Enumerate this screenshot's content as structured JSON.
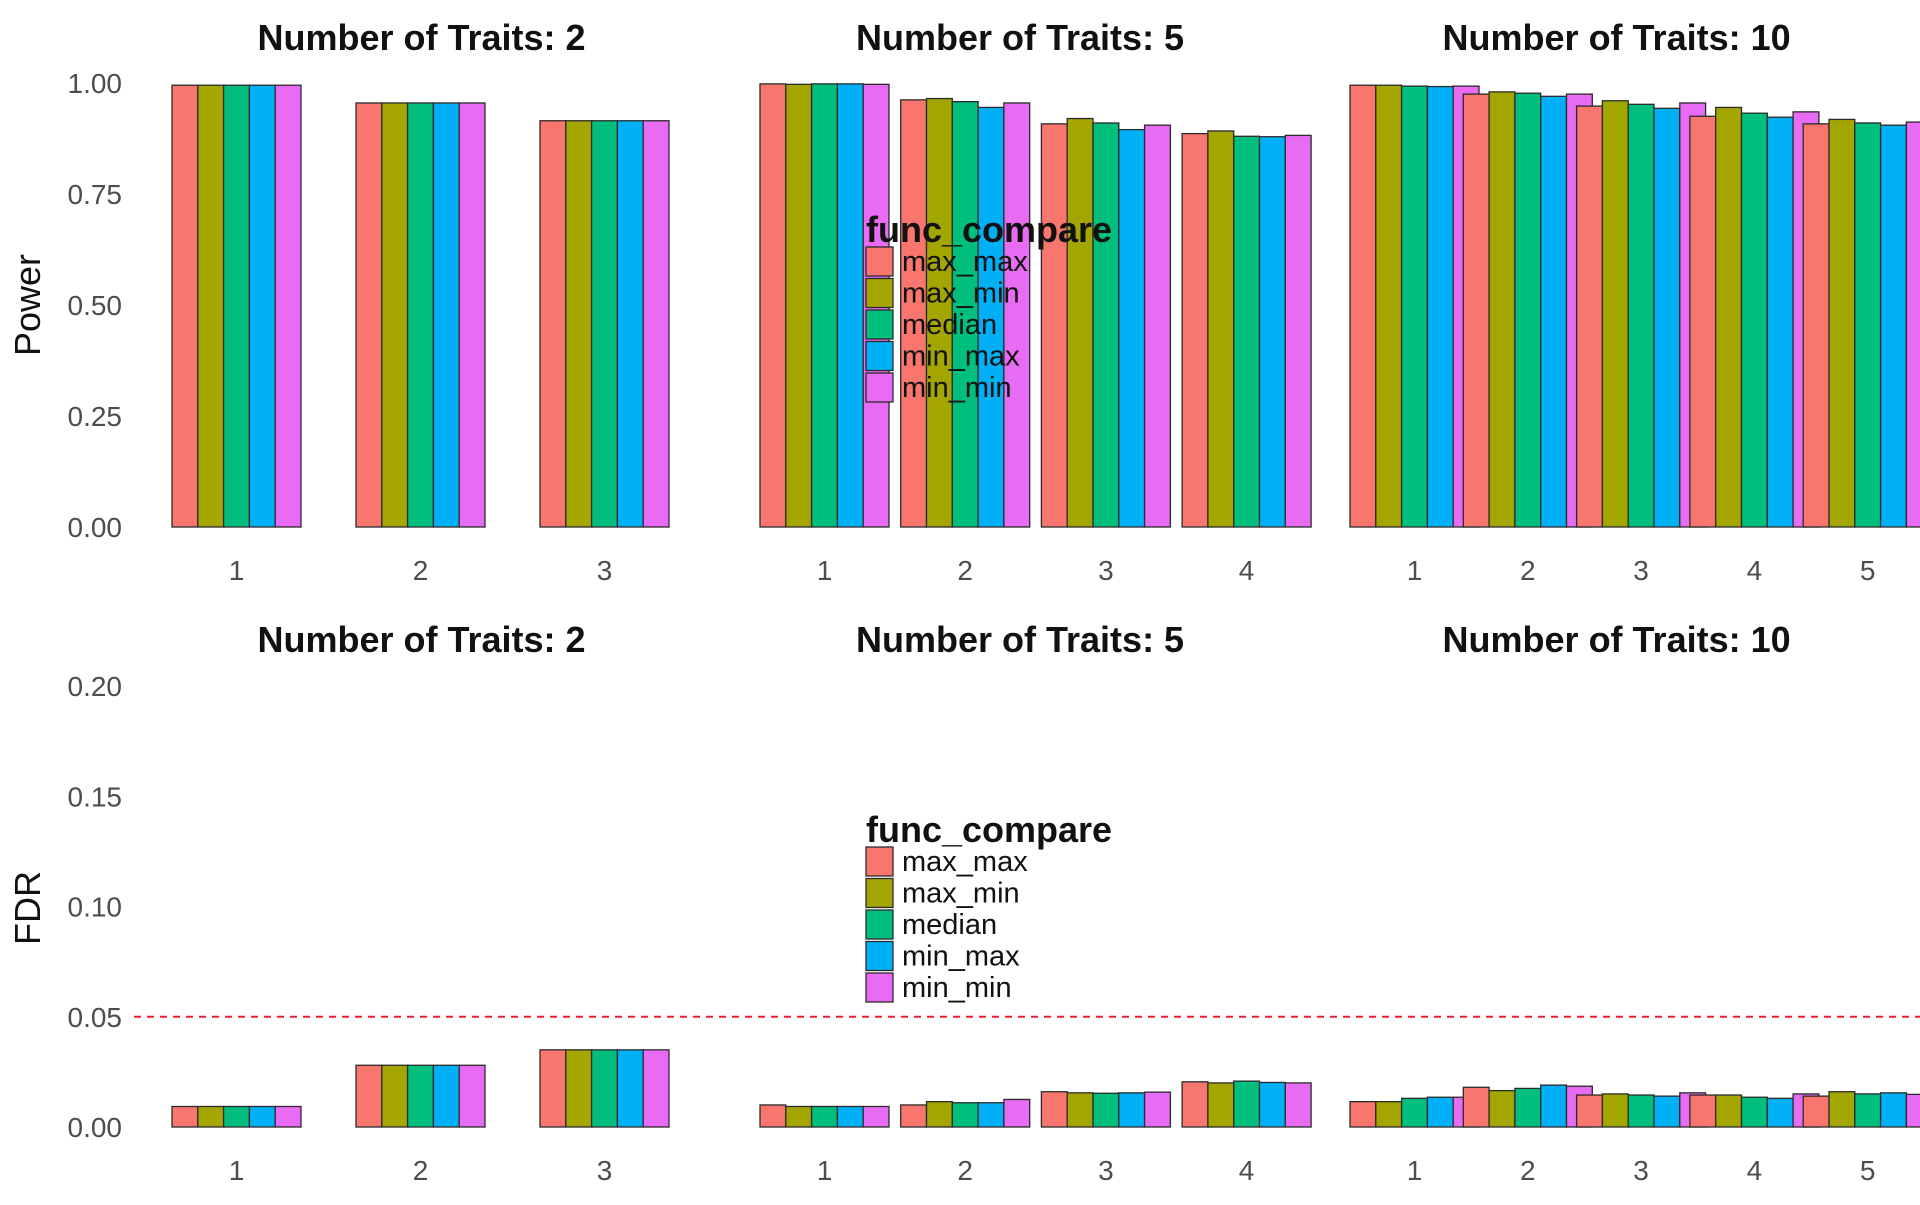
{
  "chart_data": [
    {
      "type": "bar",
      "ylabel": "Power",
      "ylim": [
        0,
        1
      ],
      "yticks": [
        "0.00",
        "0.25",
        "0.50",
        "0.75",
        "1.00"
      ],
      "legend": {
        "title": "func_compare",
        "placement": "center",
        "entries": [
          "max_max",
          "max_min",
          "median",
          "min_max",
          "min_min"
        ]
      },
      "series_colors": [
        "#F8766D",
        "#A3A500",
        "#00BF7D",
        "#00B0F6",
        "#E76BF3"
      ],
      "panels": [
        {
          "title": "Number of Traits: 2",
          "categories": [
            "1",
            "2",
            "3"
          ],
          "series": [
            {
              "name": "max_max",
              "values": [
                0.995,
                0.955,
                0.915
              ]
            },
            {
              "name": "max_min",
              "values": [
                0.995,
                0.955,
                0.915
              ]
            },
            {
              "name": "median",
              "values": [
                0.995,
                0.955,
                0.915
              ]
            },
            {
              "name": "min_max",
              "values": [
                0.995,
                0.955,
                0.915
              ]
            },
            {
              "name": "min_min",
              "values": [
                0.995,
                0.955,
                0.915
              ]
            }
          ]
        },
        {
          "title": "Number of Traits: 5",
          "categories": [
            "1",
            "2",
            "3",
            "4"
          ],
          "series": [
            {
              "name": "max_max",
              "values": [
                0.998,
                0.962,
                0.908,
                0.886
              ]
            },
            {
              "name": "max_min",
              "values": [
                0.997,
                0.965,
                0.92,
                0.892
              ]
            },
            {
              "name": "median",
              "values": [
                0.998,
                0.958,
                0.91,
                0.88
              ]
            },
            {
              "name": "min_max",
              "values": [
                0.998,
                0.945,
                0.895,
                0.879
              ]
            },
            {
              "name": "min_min",
              "values": [
                0.997,
                0.955,
                0.905,
                0.882
              ]
            }
          ]
        },
        {
          "title": "Number of Traits: 10",
          "categories": [
            "1",
            "2",
            "3",
            "4",
            "5"
          ],
          "series": [
            {
              "name": "max_max",
              "values": [
                0.995,
                0.975,
                0.948,
                0.925,
                0.908
              ]
            },
            {
              "name": "max_min",
              "values": [
                0.995,
                0.98,
                0.96,
                0.945,
                0.918
              ]
            },
            {
              "name": "median",
              "values": [
                0.993,
                0.977,
                0.952,
                0.932,
                0.91
              ]
            },
            {
              "name": "min_max",
              "values": [
                0.992,
                0.97,
                0.943,
                0.923,
                0.905
              ]
            },
            {
              "name": "min_min",
              "values": [
                0.993,
                0.975,
                0.955,
                0.935,
                0.912
              ]
            }
          ]
        }
      ]
    },
    {
      "type": "bar",
      "ylabel": "FDR",
      "ylim": [
        0,
        0.2
      ],
      "yticks": [
        "0.00",
        "0.05",
        "0.10",
        "0.15",
        "0.20"
      ],
      "reference_line": {
        "y": 0.05,
        "style": "dashed",
        "color": "#E8202E"
      },
      "legend": {
        "title": "func_compare",
        "placement": "center",
        "entries": [
          "max_max",
          "max_min",
          "median",
          "min_max",
          "min_min"
        ]
      },
      "series_colors": [
        "#F8766D",
        "#A3A500",
        "#00BF7D",
        "#00B0F6",
        "#E76BF3"
      ],
      "panels": [
        {
          "title": "Number of Traits: 2",
          "categories": [
            "1",
            "2",
            "3"
          ],
          "series": [
            {
              "name": "max_max",
              "values": [
                0.0093,
                0.028,
                0.035
              ]
            },
            {
              "name": "max_min",
              "values": [
                0.0093,
                0.028,
                0.035
              ]
            },
            {
              "name": "median",
              "values": [
                0.0093,
                0.028,
                0.035
              ]
            },
            {
              "name": "min_max",
              "values": [
                0.0093,
                0.028,
                0.035
              ]
            },
            {
              "name": "min_min",
              "values": [
                0.0093,
                0.028,
                0.035
              ]
            }
          ]
        },
        {
          "title": "Number of Traits: 5",
          "categories": [
            "1",
            "2",
            "3",
            "4"
          ],
          "series": [
            {
              "name": "max_max",
              "values": [
                0.01,
                0.01,
                0.016,
                0.0205
              ]
            },
            {
              "name": "max_min",
              "values": [
                0.0093,
                0.0115,
                0.0155,
                0.02
              ]
            },
            {
              "name": "median",
              "values": [
                0.0093,
                0.011,
                0.0153,
                0.0208
              ]
            },
            {
              "name": "min_max",
              "values": [
                0.0093,
                0.011,
                0.0155,
                0.0202
              ]
            },
            {
              "name": "min_min",
              "values": [
                0.0093,
                0.0125,
                0.0158,
                0.02
              ]
            }
          ]
        },
        {
          "title": "Number of Traits: 10",
          "categories": [
            "1",
            "2",
            "3",
            "4",
            "5"
          ],
          "series": [
            {
              "name": "max_max",
              "values": [
                0.0115,
                0.018,
                0.0145,
                0.0145,
                0.014
              ]
            },
            {
              "name": "max_min",
              "values": [
                0.0115,
                0.0165,
                0.015,
                0.0145,
                0.016
              ]
            },
            {
              "name": "median",
              "values": [
                0.013,
                0.0175,
                0.0145,
                0.0135,
                0.015
              ]
            },
            {
              "name": "min_max",
              "values": [
                0.0135,
                0.019,
                0.014,
                0.013,
                0.0155
              ]
            },
            {
              "name": "min_min",
              "values": [
                0.0135,
                0.0185,
                0.0155,
                0.015,
                0.0148
              ]
            }
          ]
        }
      ]
    }
  ]
}
